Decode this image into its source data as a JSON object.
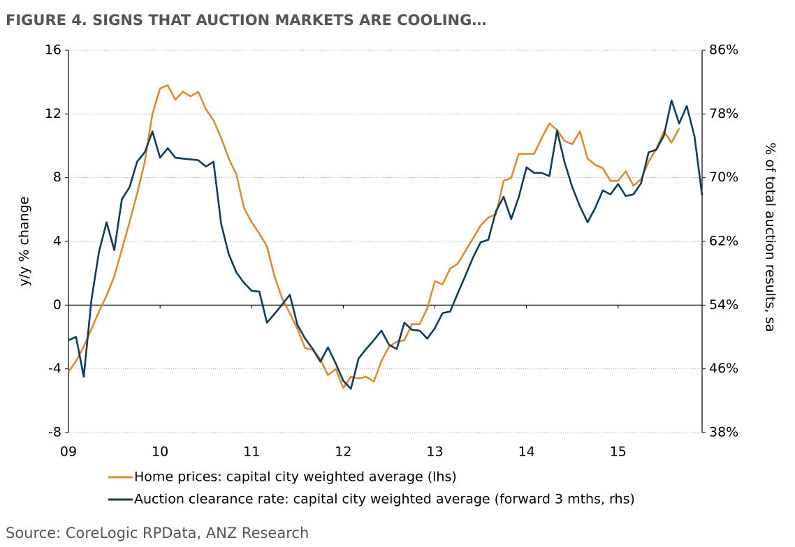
{
  "chart_data": {
    "type": "line",
    "title": "FIGURE 4. SIGNS THAT AUCTION MARKETS ARE COOLING…",
    "ylabel": "y/y % change",
    "y2label": "% of total auction results, sa",
    "source": "Source: CoreLogic RPData, ANZ Research",
    "x": [
      0,
      1,
      2,
      3,
      4,
      5,
      6,
      7,
      8,
      9,
      10,
      11,
      12,
      13,
      14,
      15,
      16,
      17,
      18,
      19,
      20,
      21,
      22,
      23,
      24,
      25,
      26,
      27,
      28,
      29,
      30,
      31,
      32,
      33,
      34,
      35,
      36,
      37,
      38,
      39,
      40,
      41,
      42,
      43,
      44,
      45,
      46,
      47,
      48,
      49,
      50,
      51,
      52,
      53,
      54,
      55,
      56,
      57,
      58,
      59,
      60,
      61,
      62,
      63,
      64,
      65,
      66,
      67,
      68,
      69,
      70,
      71,
      72,
      73,
      74,
      75,
      76,
      77,
      78,
      79,
      80,
      81,
      82,
      83
    ],
    "xlim": [
      0,
      83
    ],
    "xticks": [
      {
        "value": 0,
        "label": "09"
      },
      {
        "value": 12,
        "label": "10"
      },
      {
        "value": 24,
        "label": "11"
      },
      {
        "value": 36,
        "label": "12"
      },
      {
        "value": 48,
        "label": "13"
      },
      {
        "value": 60,
        "label": "14"
      },
      {
        "value": 72,
        "label": "15"
      }
    ],
    "ylim": [
      -8,
      16
    ],
    "yticks": [
      -8,
      -4,
      0,
      4,
      8,
      12,
      16
    ],
    "y2lim": [
      38,
      86
    ],
    "y2ticks": [
      {
        "value": 38,
        "label": "38%"
      },
      {
        "value": 46,
        "label": "46%"
      },
      {
        "value": 54,
        "label": "54%"
      },
      {
        "value": 62,
        "label": "62%"
      },
      {
        "value": 70,
        "label": "70%"
      },
      {
        "value": 78,
        "label": "78%"
      },
      {
        "value": 86,
        "label": "86%"
      }
    ],
    "grid": true,
    "series": [
      {
        "name": "Home prices: capital city weighted average (lhs)",
        "color": "#e08a2e",
        "values": [
          -4.2,
          -3.5,
          -2.6,
          -1.5,
          -0.4,
          0.6,
          1.8,
          3.5,
          5.2,
          7.0,
          9.0,
          12.0,
          13.6,
          13.8,
          12.9,
          13.4,
          13.1,
          13.4,
          12.3,
          11.6,
          10.5,
          9.2,
          8.2,
          6.1,
          5.2,
          4.5,
          3.7,
          1.8,
          0.4,
          -0.5,
          -1.5,
          -2.7,
          -2.8,
          -3.4,
          -4.4,
          -4.0,
          -5.2,
          -4.5,
          -4.6,
          -4.5,
          -4.8,
          -3.5,
          -2.6,
          -2.3,
          -2.2,
          -1.2,
          -1.2,
          -0.2,
          1.5,
          1.3,
          2.3,
          2.6,
          3.4,
          4.2,
          5.0,
          5.5,
          5.7,
          7.8,
          8.0,
          9.5,
          9.5,
          9.5,
          10.5,
          11.4,
          11.0,
          10.3,
          10.1,
          10.9,
          9.2,
          8.8,
          8.6,
          7.8,
          7.8,
          8.4,
          7.5,
          7.9,
          9.0,
          9.8,
          10.9,
          10.2,
          11.1,
          null,
          null,
          null
        ]
      },
      {
        "name": "Auction clearance rate: capital city weighted average (forward 3 mths, rhs)",
        "color": "#0e3d5c",
        "axis": "y2",
        "values": [
          49.6,
          50,
          45,
          54.6,
          60.7,
          64.4,
          60.9,
          67.3,
          68.8,
          72,
          73.2,
          75.8,
          72.5,
          73.7,
          72.5,
          72.4,
          72.3,
          72.2,
          71.4,
          72,
          64.2,
          60.4,
          58.1,
          56.8,
          55.8,
          55.7,
          51.8,
          52.9,
          54.1,
          55.3,
          51.5,
          49.8,
          48.5,
          46.9,
          48.7,
          46.7,
          44.5,
          43.5,
          47.3,
          48.5,
          49.6,
          50.8,
          49,
          48.5,
          51.8,
          50.9,
          50.8,
          49.8,
          51.1,
          53,
          53.2,
          55.5,
          57.7,
          60,
          61.9,
          62.2,
          65.8,
          67.6,
          64.8,
          67.6,
          71.3,
          70.6,
          70.6,
          70.2,
          75.9,
          71.9,
          68.8,
          66.4,
          64.4,
          66.2,
          68.4,
          67.9,
          69.2,
          67.7,
          67.9,
          69.3,
          73.2,
          73.5,
          75.3,
          79.7,
          76.8,
          79,
          75.2,
          67.8
        ]
      }
    ]
  }
}
